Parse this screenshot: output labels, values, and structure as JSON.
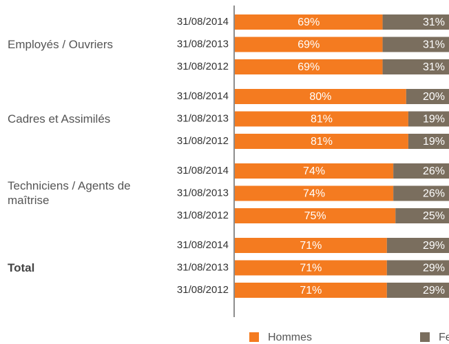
{
  "chart_data": {
    "type": "stacked-bar-horizontal",
    "groups": [
      {
        "name": "Employés / Ouvriers",
        "categories": [
          "31/08/2014",
          "31/08/2013",
          "31/08/2012"
        ]
      },
      {
        "name": "Cadres et Assimilés",
        "categories": [
          "31/08/2014",
          "31/08/2013",
          "31/08/2012"
        ]
      },
      {
        "name": "Techniciens / Agents de maîtrise",
        "categories": [
          "31/08/2014",
          "31/08/2013",
          "31/08/2012"
        ]
      },
      {
        "name": "Total",
        "categories": [
          "31/08/2014",
          "31/08/2013",
          "31/08/2012"
        ]
      }
    ],
    "series": [
      {
        "name": "Hommes",
        "color": "#f47b20",
        "values": [
          69,
          69,
          69,
          80,
          81,
          81,
          74,
          74,
          75,
          71,
          71,
          71
        ],
        "value_labels": [
          "69%",
          "69%",
          "69%",
          "80%",
          "81%",
          "81%",
          "74%",
          "74%",
          "75%",
          "71%",
          "71%",
          "71%"
        ]
      },
      {
        "name": "Femme",
        "color": "#7a6e5e",
        "values": [
          31,
          31,
          31,
          20,
          19,
          19,
          26,
          26,
          25,
          29,
          29,
          29
        ],
        "value_labels": [
          "31%",
          "31%",
          "31%",
          "20%",
          "19%",
          "19%",
          "26%",
          "26%",
          "25%",
          "29%",
          "29%",
          "29%"
        ]
      }
    ],
    "xlim": [
      0,
      100
    ]
  }
}
